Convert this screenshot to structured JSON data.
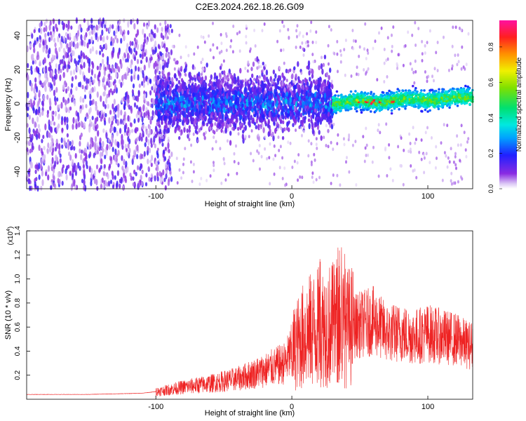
{
  "title": "C2E3.2024.262.18.26.G09",
  "colors": {
    "background": "#ffffff",
    "snr_line": "#ee2222",
    "spectrogram_low": "#7a10e8"
  },
  "chart_data": [
    {
      "type": "heatmap",
      "title": "C2E3.2024.262.18.26.G09",
      "xlabel": "Height of straight line (km)",
      "ylabel": "Frequency (Hz)",
      "xlim": [
        -195,
        133
      ],
      "ylim": [
        -50,
        49
      ],
      "xticks": [
        -100,
        0,
        100
      ],
      "yticks": [
        -40,
        -20,
        0,
        20,
        40
      ],
      "colorbar": {
        "label": "Normalized spectral amplitude",
        "range": [
          0,
          0.95
        ],
        "ticks": [
          0.0,
          0.2,
          0.4,
          0.6,
          0.8
        ],
        "colormap": "rainbow (purple → blue → cyan → green → yellow → red → magenta)"
      },
      "description_regions": [
        {
          "x_range": [
            -195,
            -100
          ],
          "frequency_spread": [
            -50,
            49
          ],
          "amplitude": [
            0.0,
            0.15
          ]
        },
        {
          "x_range": [
            -100,
            30
          ],
          "frequency_spread": [
            -20,
            15
          ],
          "amplitude": [
            0.05,
            0.35
          ]
        },
        {
          "x_range": [
            30,
            133
          ],
          "frequency_center": [
            0,
            6
          ],
          "frequency_spread": [
            -5,
            5
          ],
          "amplitude": [
            0.3,
            0.95
          ]
        }
      ]
    },
    {
      "type": "line",
      "xlabel": "Height of straight line (km)",
      "ylabel": "SNR (10 * v/v)",
      "y_multiplier": "(x10",
      "y_multiplier_exp": "4",
      "xlim": [
        -195,
        133
      ],
      "ylim": [
        0,
        1.4
      ],
      "xticks": [
        -100,
        0,
        100
      ],
      "yticks": [
        0.2,
        0.4,
        0.6,
        0.8,
        1.0,
        1.2,
        1.4
      ],
      "series": [
        {
          "color": "#ee2222",
          "x": [
            -195,
            -150,
            -110,
            -95,
            -80,
            -60,
            -40,
            -20,
            -5,
            0,
            10,
            20,
            30,
            40,
            50,
            60,
            70,
            80,
            90,
            100,
            110,
            120,
            130
          ],
          "y": [
            0.04,
            0.04,
            0.05,
            0.07,
            0.1,
            0.13,
            0.17,
            0.24,
            0.3,
            0.4,
            0.55,
            0.6,
            0.62,
            0.6,
            0.62,
            0.65,
            0.55,
            0.55,
            0.52,
            0.55,
            0.52,
            0.5,
            0.45
          ]
        }
      ]
    }
  ]
}
